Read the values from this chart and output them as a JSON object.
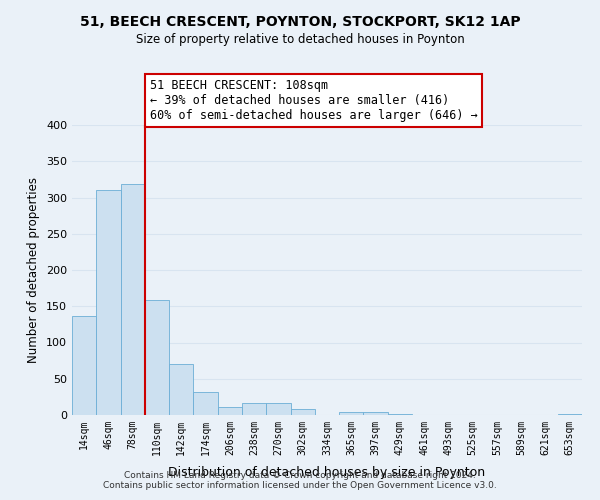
{
  "title": "51, BEECH CRESCENT, POYNTON, STOCKPORT, SK12 1AP",
  "subtitle": "Size of property relative to detached houses in Poynton",
  "xlabel": "Distribution of detached houses by size in Poynton",
  "ylabel": "Number of detached properties",
  "bin_labels": [
    "14sqm",
    "46sqm",
    "78sqm",
    "110sqm",
    "142sqm",
    "174sqm",
    "206sqm",
    "238sqm",
    "270sqm",
    "302sqm",
    "334sqm",
    "365sqm",
    "397sqm",
    "429sqm",
    "461sqm",
    "493sqm",
    "525sqm",
    "557sqm",
    "589sqm",
    "621sqm",
    "653sqm"
  ],
  "bar_values": [
    136,
    311,
    318,
    158,
    71,
    32,
    11,
    16,
    16,
    8,
    0,
    4,
    4,
    2,
    0,
    0,
    0,
    0,
    0,
    0,
    2
  ],
  "bar_color": "#cce0f0",
  "bar_edge_color": "#6baed6",
  "vline_x_label": "110sqm",
  "vline_color": "#cc0000",
  "annotation_title": "51 BEECH CRESCENT: 108sqm",
  "annotation_line1": "← 39% of detached houses are smaller (416)",
  "annotation_line2": "60% of semi-detached houses are larger (646) →",
  "annotation_box_color": "#ffffff",
  "annotation_box_edge": "#cc0000",
  "ylim": [
    0,
    400
  ],
  "yticks": [
    0,
    50,
    100,
    150,
    200,
    250,
    300,
    350,
    400
  ],
  "grid_color": "#d8e4f0",
  "bg_color": "#eaf1f8",
  "footer_line1": "Contains HM Land Registry data © Crown copyright and database right 2024.",
  "footer_line2": "Contains public sector information licensed under the Open Government Licence v3.0."
}
